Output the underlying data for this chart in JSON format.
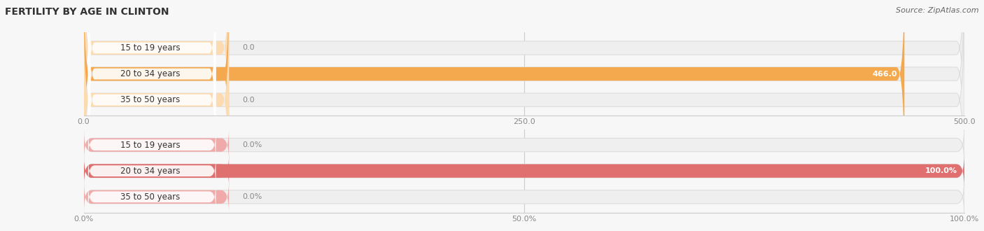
{
  "title": "FERTILITY BY AGE IN CLINTON",
  "source": "Source: ZipAtlas.com",
  "top_chart": {
    "categories": [
      "15 to 19 years",
      "20 to 34 years",
      "35 to 50 years"
    ],
    "values": [
      0.0,
      466.0,
      0.0
    ],
    "bar_color": "#F5A94E",
    "bar_light_color": "#FDDBB0",
    "bar_bg_color": "#EFEFEF",
    "bar_border_color": "#E0E0E0",
    "xlim": [
      0,
      500
    ],
    "xticks": [
      0.0,
      250.0,
      500.0
    ],
    "xtick_labels": [
      "0.0",
      "250.0",
      "500.0"
    ]
  },
  "bottom_chart": {
    "categories": [
      "15 to 19 years",
      "20 to 34 years",
      "35 to 50 years"
    ],
    "values": [
      0.0,
      100.0,
      0.0
    ],
    "bar_color": "#E07070",
    "bar_light_color": "#F0AAAA",
    "bar_bg_color": "#EFEFEF",
    "bar_border_color": "#E0E0E0",
    "xlim": [
      0,
      100
    ],
    "xticks": [
      0.0,
      50.0,
      100.0
    ],
    "xtick_labels": [
      "0.0%",
      "50.0%",
      "100.0%"
    ]
  },
  "bg_color": "#F7F7F7",
  "title_fontsize": 10,
  "source_fontsize": 8,
  "label_fontsize": 8,
  "category_fontsize": 8.5,
  "tick_fontsize": 8,
  "title_color": "#333333",
  "source_color": "#666666",
  "tick_color": "#888888",
  "category_color": "#333333",
  "value_color_inside": "#FFFFFF",
  "value_color_outside": "#888888"
}
